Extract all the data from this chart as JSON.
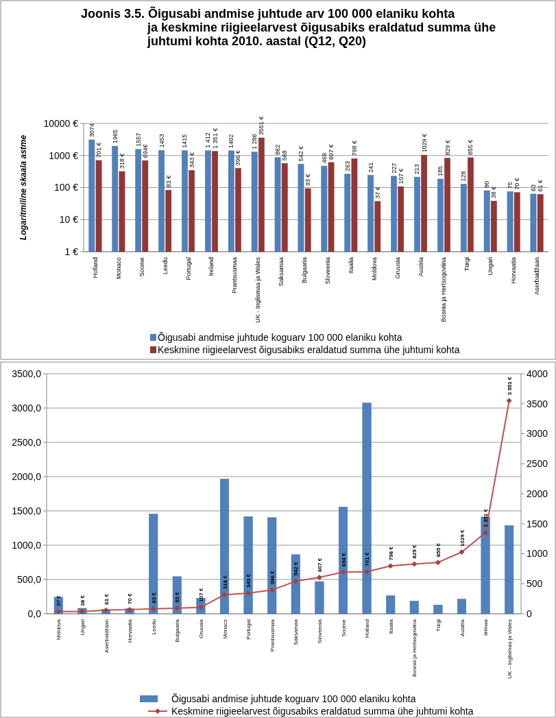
{
  "chart_data": [
    {
      "type": "bar",
      "title": "Joonis 3.5. Õigusabi andmise juhtude arv 100 000 elaniku kohta ja keskmine riigieelarvest õigusabiks eraldatud summa ühe juhtumi kohta 2010. aastal (Q12, Q20)",
      "ylabel": "Logaritmiline skaala astme",
      "log": true,
      "grid": "y",
      "legend": "bottom",
      "ylim": [
        1,
        10000
      ],
      "yticks": [
        {
          "value": 1,
          "label": "1 €"
        },
        {
          "value": 10,
          "label": "10 €"
        },
        {
          "value": 100,
          "label": "100 €"
        },
        {
          "value": 1000,
          "label": "1000 €"
        },
        {
          "value": 10000,
          "label": "10000 €"
        }
      ],
      "categories": [
        "Holland",
        "Monaco",
        "Soome",
        "Leedu",
        "Portugal",
        "Ireland",
        "Prantsusmaa",
        "UK - Inglismaa ja Wales",
        "Saksamaa",
        "Bulgaaria",
        "Sloveenia",
        "Itaalia",
        "Moldova",
        "Gruusia",
        "Austria",
        "Bosnia ja Hertsogoviina",
        "Türgi",
        "Ungari",
        "Horvaatia",
        "Aserbaidžaan"
      ],
      "series": [
        {
          "name": "Õigusabi andmise juhtude koguarv 100 000 elaniku kohta",
          "color": "#4f81bd",
          "values": [
            3074,
            1965,
            1557,
            1453,
            1415,
            1412,
            1402,
            1286,
            862,
            542,
            469,
            263,
            241,
            227,
            213,
            185,
            128,
            80,
            75,
            63
          ],
          "value_labels": [
            "3074",
            "1965",
            "1557",
            "1453",
            "1415",
            "1 412",
            "1402",
            "1 286",
            "862",
            "542 €",
            "469",
            "263",
            "241",
            "227",
            "213",
            "185",
            "128",
            "80",
            "75",
            "63"
          ]
        },
        {
          "name": "Keskmine riigieelarvest õigusabiks eraldatud summa ühe juhtumi kohta",
          "color": "#943634",
          "values": [
            701,
            318,
            694,
            83,
            343,
            1351,
            396,
            3551,
            568,
            93,
            607,
            798,
            37,
            107,
            1029,
            829,
            855,
            38,
            70,
            61
          ],
          "value_labels": [
            "701 €",
            "318 €",
            "694€",
            "83 €",
            "343 €",
            "1 351 €",
            "396 €",
            "3551 €",
            "568",
            "93 €",
            "607 €",
            "798 €",
            "37 €",
            "107 €",
            "1029 €",
            "829 €",
            "855 €",
            "38 €",
            "70 €",
            "61 €"
          ]
        }
      ]
    },
    {
      "type": "bar",
      "grid": "y",
      "legend": "bottom",
      "marker": "diamond",
      "ylim": [
        0,
        3500
      ],
      "yticks": [
        {
          "value": 0,
          "label": "0,0"
        },
        {
          "value": 500,
          "label": "500,0"
        },
        {
          "value": 1000,
          "label": "1000,0"
        },
        {
          "value": 1500,
          "label": "1500,0"
        },
        {
          "value": 2000,
          "label": "2000,0"
        },
        {
          "value": 2500,
          "label": "2500,0"
        },
        {
          "value": 3000,
          "label": "3000,0"
        },
        {
          "value": 3500,
          "label": "3500,0"
        }
      ],
      "y2lim": [
        0,
        4000
      ],
      "y2ticks": [
        0,
        500,
        1000,
        1500,
        2000,
        2500,
        3000,
        3500,
        4000
      ],
      "categories": [
        "Moldova",
        "Ungari",
        "Aserbaidžaan",
        "Horvaatia",
        "Leedu",
        "Bulgaaria",
        "Gruusia",
        "Monaco",
        "Portugal",
        "Prantsusmaa",
        "Saksamaa",
        "Sloveenia",
        "Soome",
        "Holland",
        "Itaalia",
        "Bosnia ja Hertsegoviina",
        "Türgi",
        "Austria",
        "Iirimaa",
        "UK – Inglismaa ja Wales"
      ],
      "series": [
        {
          "name": "Õigusabi andmise juhtude koguarv 100 000 elaniku kohta",
          "color": "#4f81bd",
          "values": [
            241,
            80,
            63,
            75,
            1453,
            542,
            227,
            1965,
            1415,
            1402,
            862,
            469,
            1557,
            3074,
            263,
            185,
            128,
            213,
            1412,
            1286
          ]
        },
        {
          "name": "Keskmine riigieelarvest õigusabiks eraldatud summa ühe juhtumi kohta",
          "type": "line",
          "axis": "y2",
          "color": "#c0504d",
          "values": [
            37,
            38,
            61,
            70,
            83,
            93,
            107,
            318,
            343,
            396,
            542,
            607,
            694,
            701,
            798,
            829,
            855,
            1029,
            1351,
            3551
          ],
          "value_labels": [
            "37 €",
            "38 €",
            "61 €",
            "70 €",
            "83 €",
            "93 €",
            "107 €",
            "318 €",
            "343 €",
            "396 €",
            "542 €",
            "607 €",
            "694 €",
            "701 €",
            "798 €",
            "829 €",
            "855 €",
            "1029 €",
            "1 351 €",
            "3 551 €"
          ]
        }
      ]
    }
  ]
}
